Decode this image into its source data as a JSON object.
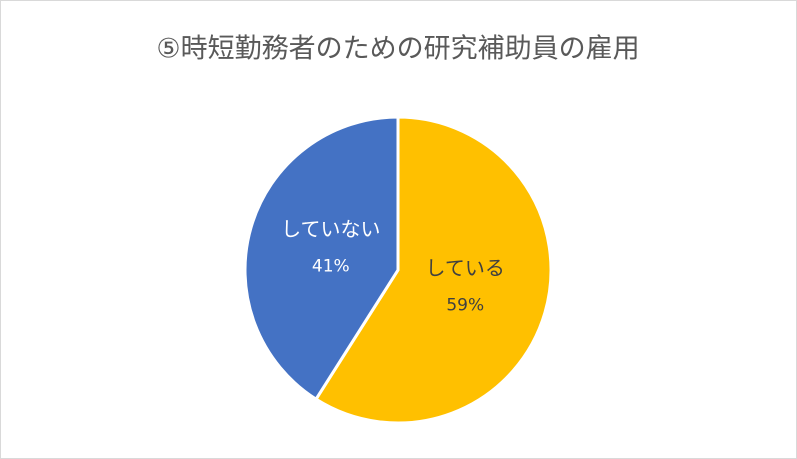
{
  "chart_data": {
    "type": "pie",
    "title": "⑤時短勤務者のための研究補助員の雇用",
    "categories": [
      "している",
      "していない"
    ],
    "values": [
      59,
      41
    ],
    "value_labels": [
      "59%",
      "41%"
    ],
    "colors": [
      "#FFC000",
      "#4472C4"
    ]
  }
}
